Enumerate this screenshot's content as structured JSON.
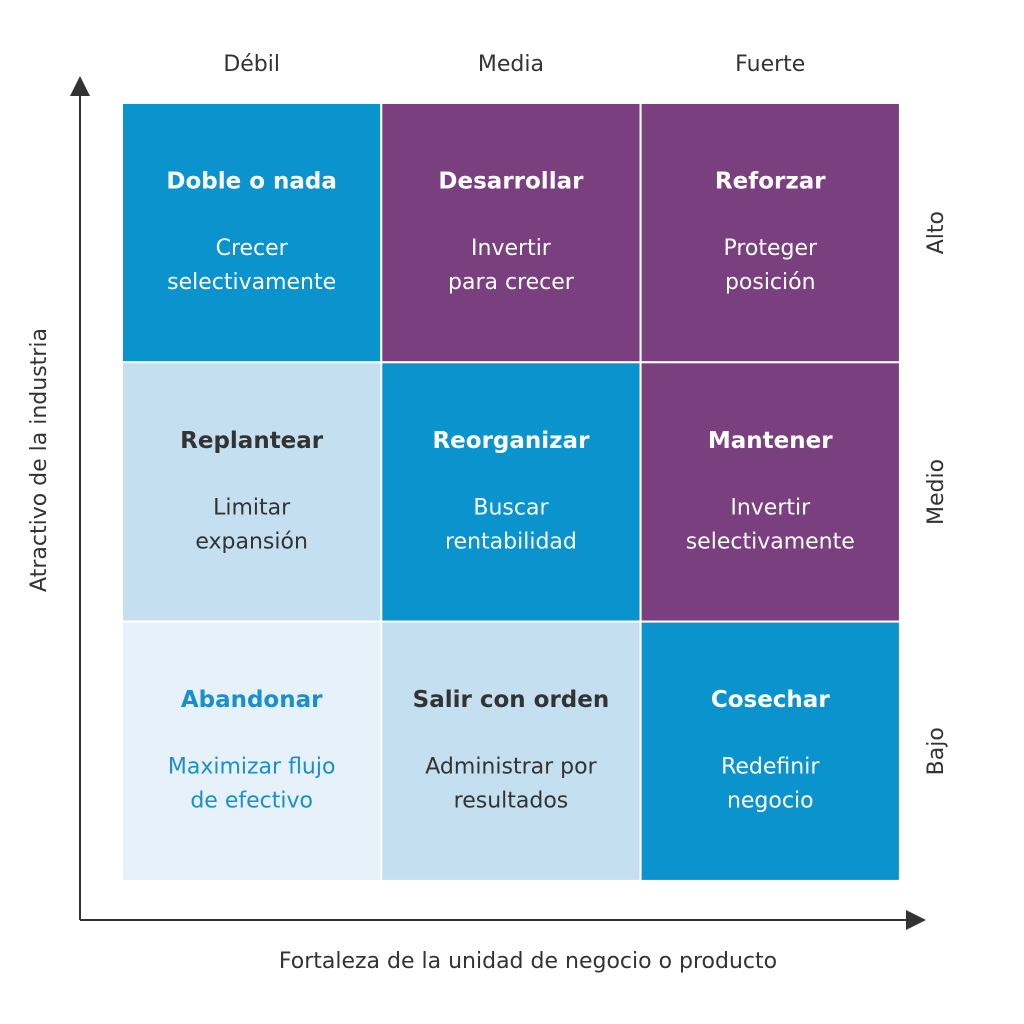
{
  "axes": {
    "x_label": "Fortaleza de la unidad de negocio o producto",
    "y_label": "Atractivo de la industria"
  },
  "columns": [
    "Débil",
    "Media",
    "Fuerte"
  ],
  "rows": [
    "Alto",
    "Medio",
    "Bajo"
  ],
  "cells": [
    [
      {
        "title": "Doble o nada",
        "subtitle": [
          "Crecer",
          "selectivamente"
        ]
      },
      {
        "title": "Desarrollar",
        "subtitle": [
          "Invertir",
          "para crecer"
        ]
      },
      {
        "title": "Reforzar",
        "subtitle": [
          "Proteger",
          "posición"
        ]
      }
    ],
    [
      {
        "title": "Replantear",
        "subtitle": [
          "Limitar",
          "expansión"
        ]
      },
      {
        "title": "Reorganizar",
        "subtitle": [
          "Buscar",
          "rentabilidad"
        ]
      },
      {
        "title": "Mantener",
        "subtitle": [
          "Invertir",
          "selectivamente"
        ]
      }
    ],
    [
      {
        "title": "Abandonar",
        "subtitle": [
          "Maximizar flujo",
          "de efectivo"
        ]
      },
      {
        "title": "Salir con orden",
        "subtitle": [
          "Administrar por",
          "resultados"
        ]
      },
      {
        "title": "Cosechar",
        "subtitle": [
          "Redefinir",
          "negocio"
        ]
      }
    ]
  ]
}
